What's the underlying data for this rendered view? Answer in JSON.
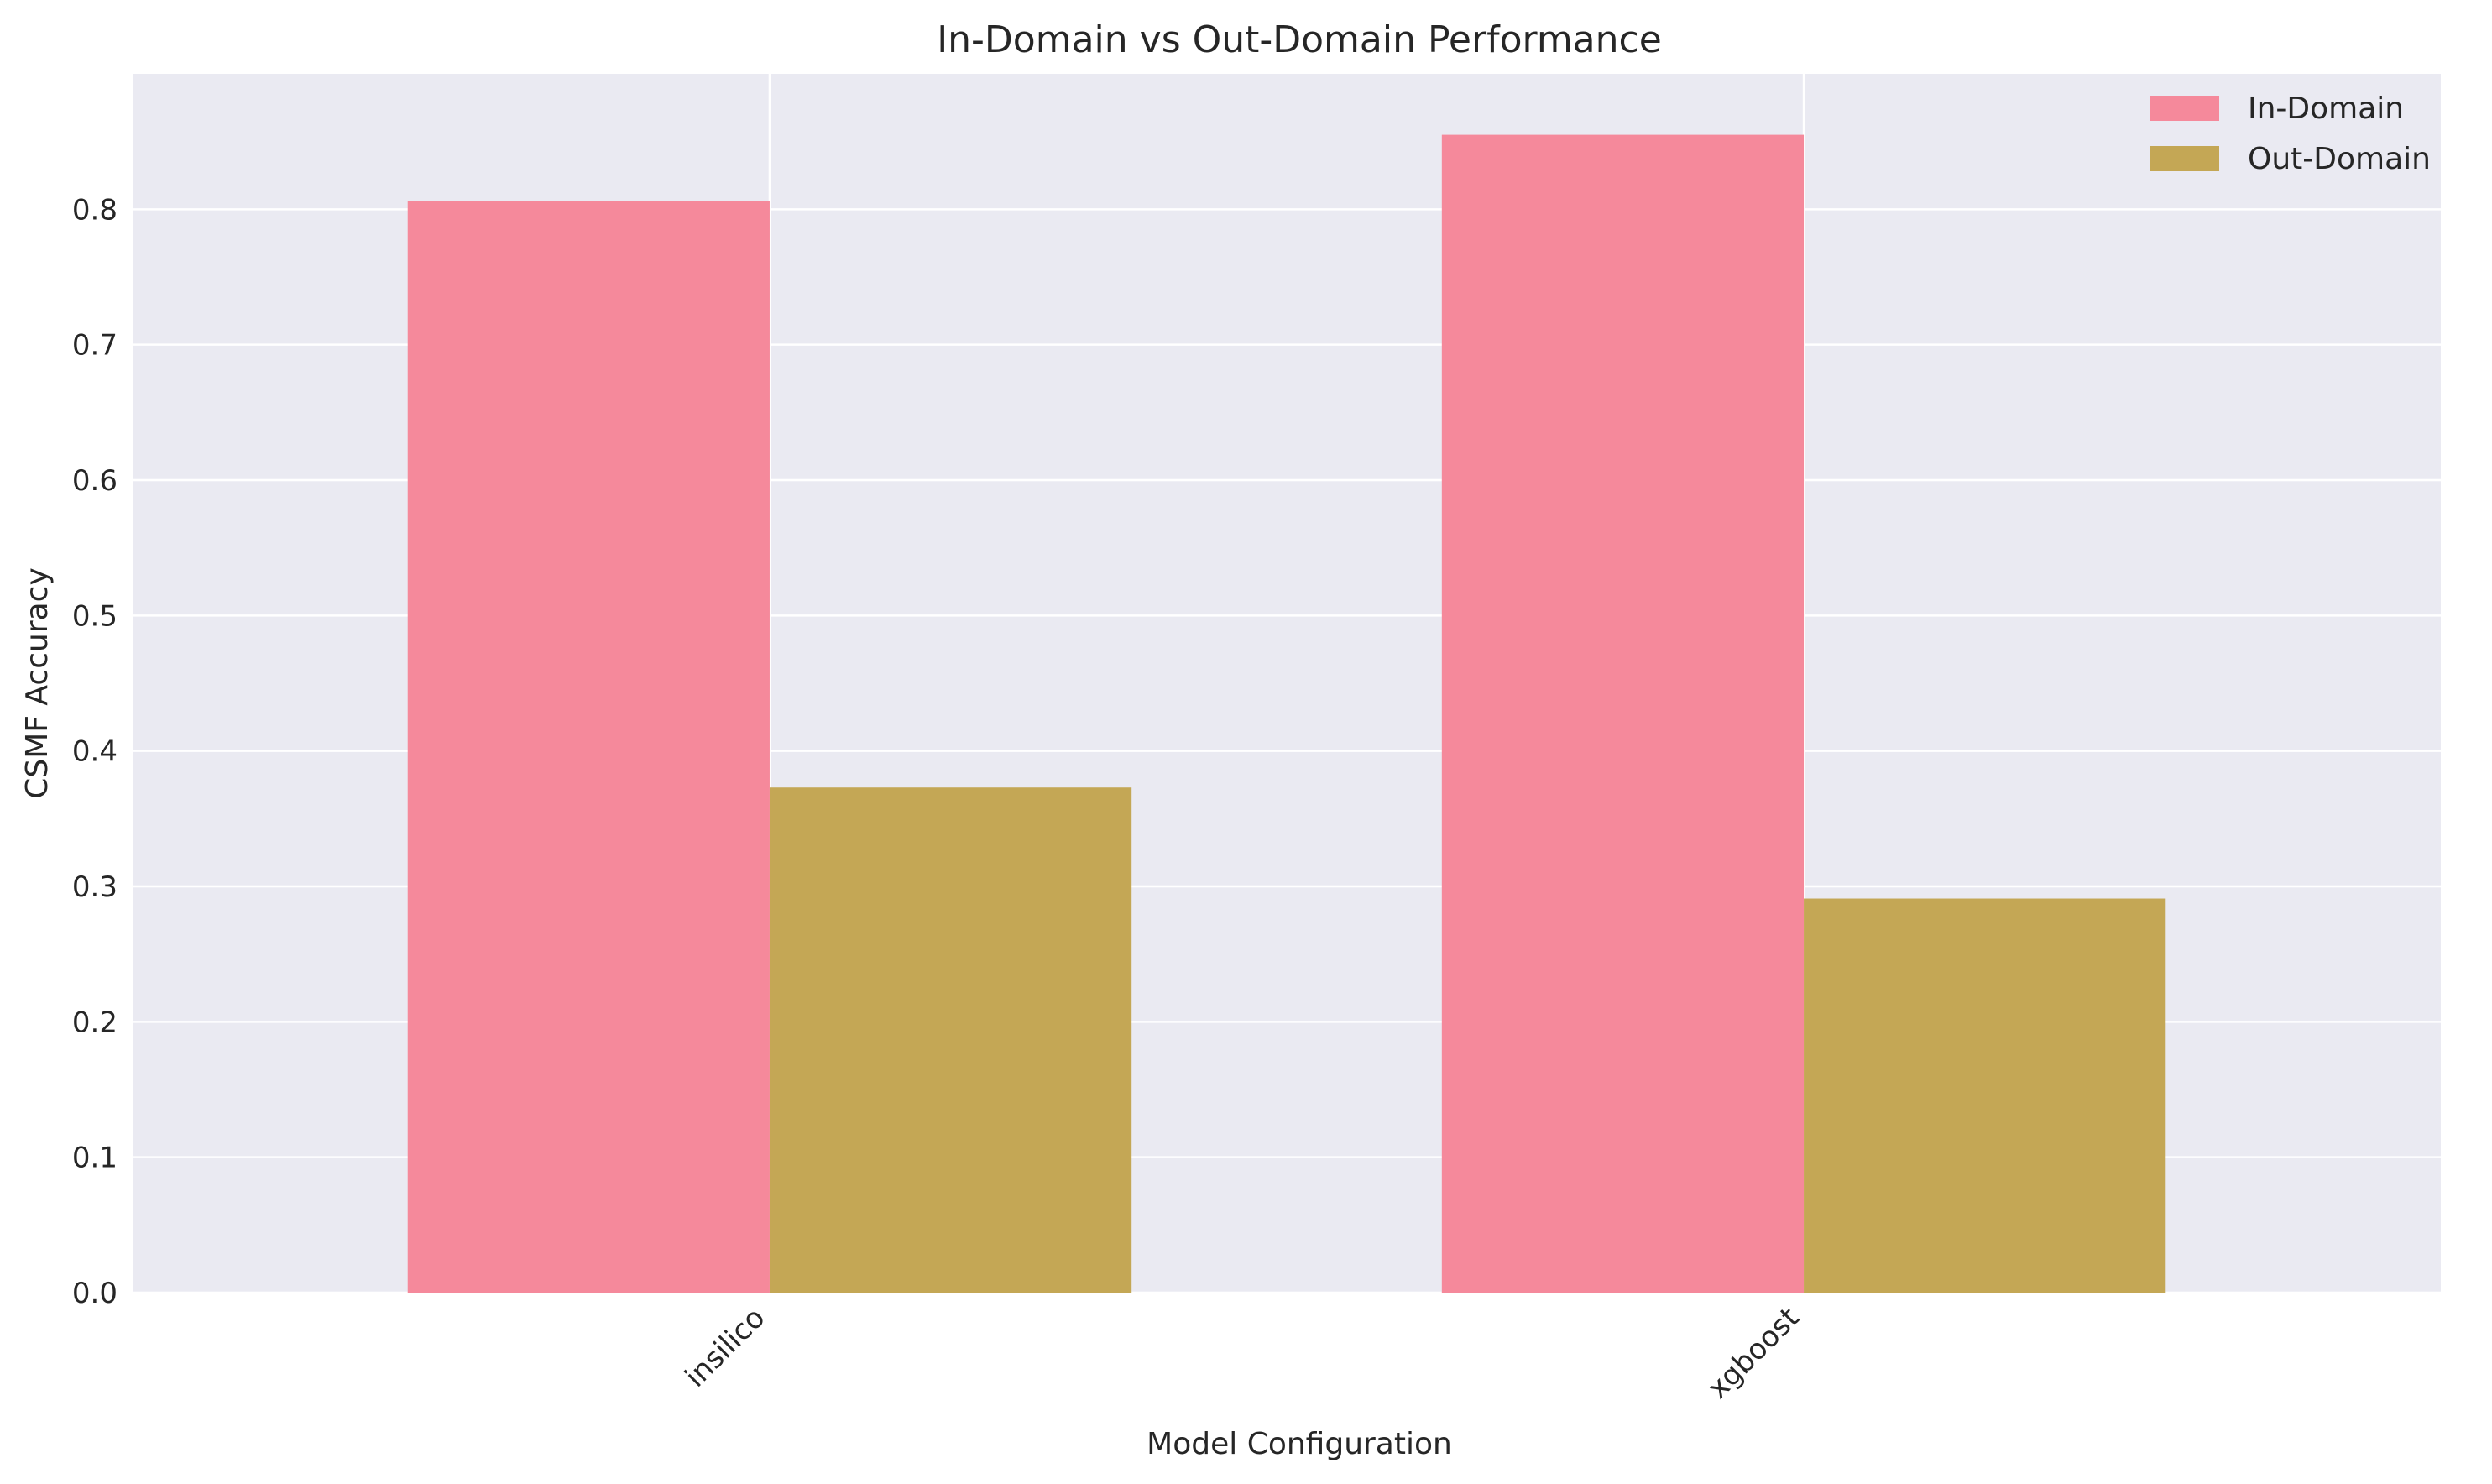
{
  "chart_data": {
    "type": "bar",
    "title": "In-Domain vs Out-Domain Performance",
    "xlabel": "Model Configuration",
    "ylabel": "CSMF Accuracy",
    "categories": [
      "insilico",
      "xgboost"
    ],
    "series": [
      {
        "name": "In-Domain",
        "color": "#f5899b",
        "values": [
          0.806,
          0.855
        ]
      },
      {
        "name": "Out-Domain",
        "color": "#c4a755",
        "values": [
          0.373,
          0.291
        ]
      }
    ],
    "ylim": [
      0,
      0.9
    ],
    "yticks": [
      0.0,
      0.1,
      0.2,
      0.3,
      0.4,
      0.5,
      0.6,
      0.7,
      0.8
    ],
    "ytick_labels": [
      "0.0",
      "0.1",
      "0.2",
      "0.3",
      "0.4",
      "0.5",
      "0.6",
      "0.7",
      "0.8"
    ],
    "grid": true,
    "background": "#eaeaf2",
    "legend_position": "top-right",
    "xtick_rotation": -45
  }
}
